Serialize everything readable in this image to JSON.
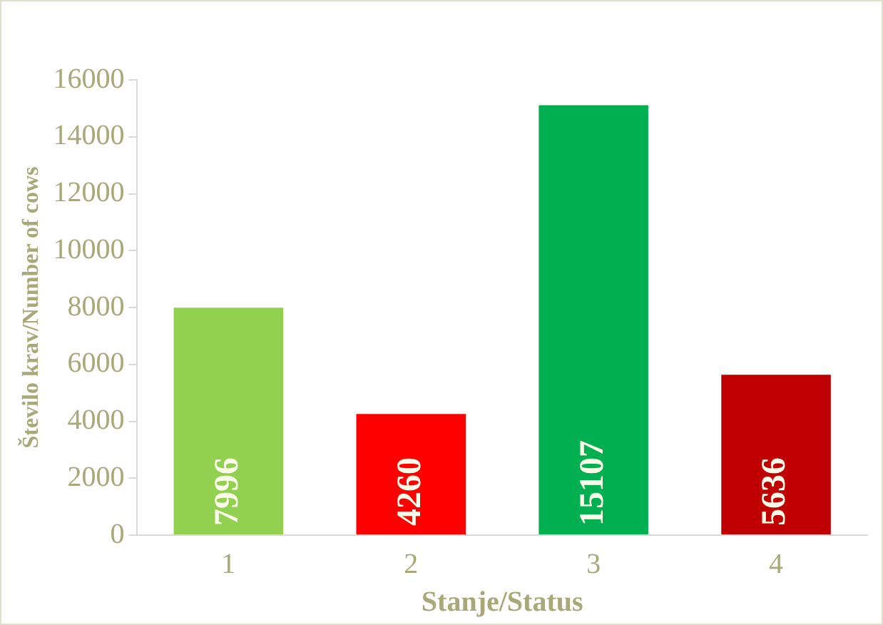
{
  "chart_data": {
    "type": "bar",
    "xlabel": "Stanje/Status",
    "ylabel": "Število krav/Number of cows",
    "categories": [
      "1",
      "2",
      "3",
      "4"
    ],
    "values": [
      7996,
      4260,
      15107,
      5636
    ],
    "colors": [
      "#92d050",
      "#ff0000",
      "#00b050",
      "#c00000"
    ],
    "ylim": [
      0,
      16000
    ],
    "yticks": [
      0,
      2000,
      4000,
      6000,
      8000,
      10000,
      12000,
      14000,
      16000
    ],
    "grid": false,
    "legend": false,
    "data_labels": true
  }
}
